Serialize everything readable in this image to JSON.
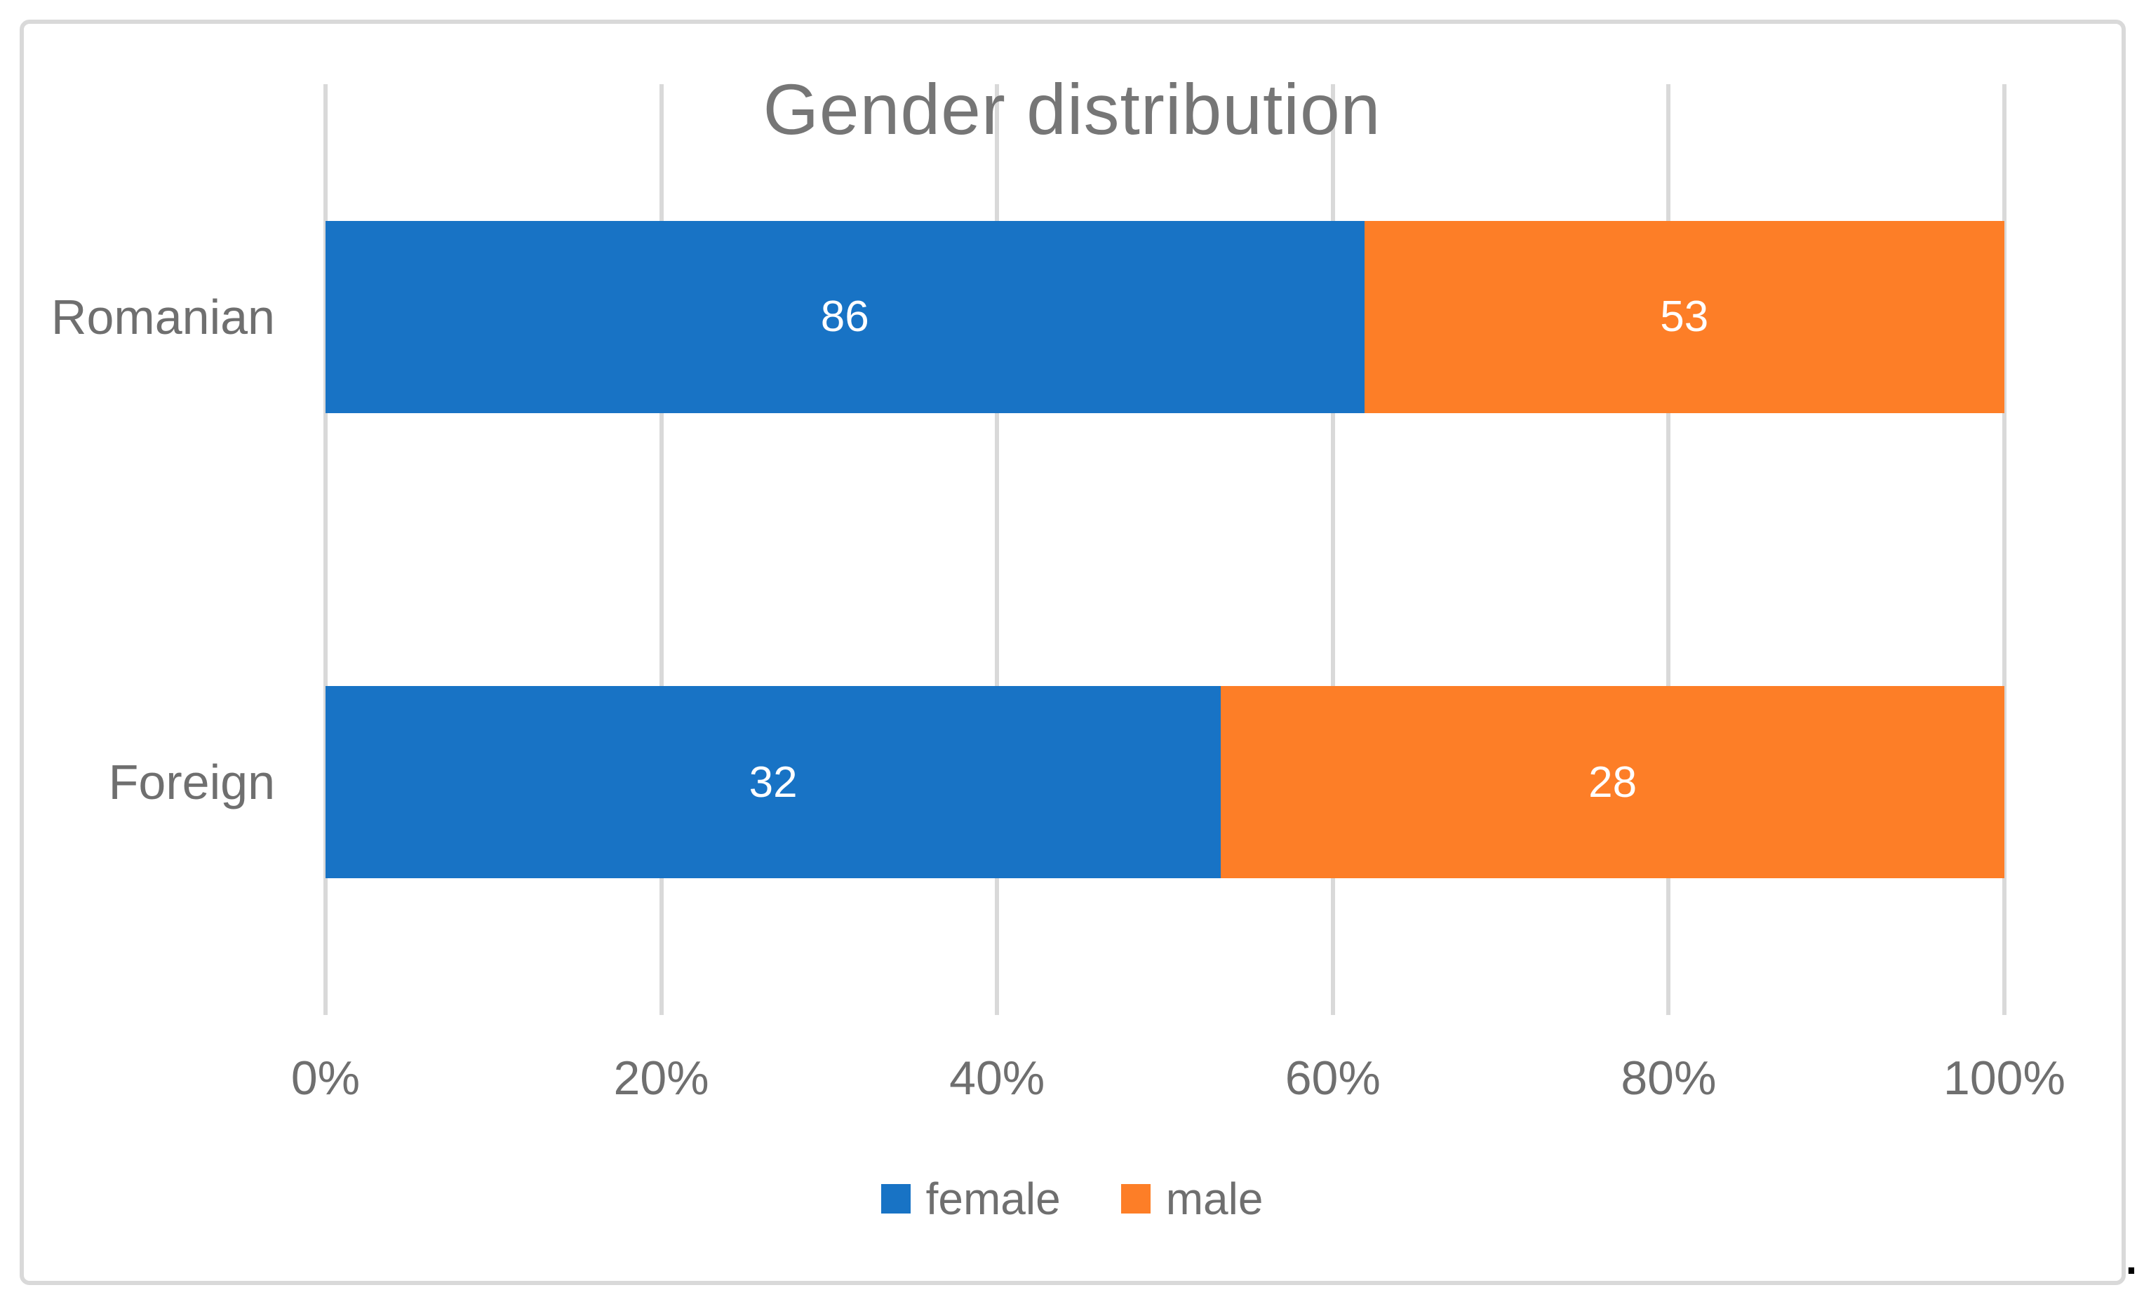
{
  "page": {
    "stray_text": "."
  },
  "colors": {
    "female": "#1873C5",
    "male": "#FD7E27",
    "gridline": "#D9D9D9",
    "axis_text": "#6F6F6F",
    "title_text": "#767676",
    "data_label_text": "#FFFFFF",
    "background": "#FFFFFF"
  },
  "chart_data": {
    "type": "bar",
    "subtype": "horizontal-100pct-stacked",
    "title": "Gender distribution",
    "categories": [
      "Romanian",
      "Foreign"
    ],
    "series": [
      {
        "name": "female",
        "color": "#1873C5",
        "values": [
          86,
          32
        ]
      },
      {
        "name": "male",
        "color": "#FD7E27",
        "values": [
          53,
          28
        ]
      }
    ],
    "data_labels": [
      [
        "86",
        "53"
      ],
      [
        "32",
        "28"
      ]
    ],
    "x_axis": {
      "tick_labels": [
        "0%",
        "20%",
        "40%",
        "60%",
        "80%",
        "100%"
      ],
      "range_percent": [
        0,
        100
      ]
    },
    "legend": {
      "position": "bottom",
      "entries": [
        "female",
        "male"
      ]
    },
    "gridlines": "vertical",
    "xlabel": "",
    "ylabel": ""
  }
}
